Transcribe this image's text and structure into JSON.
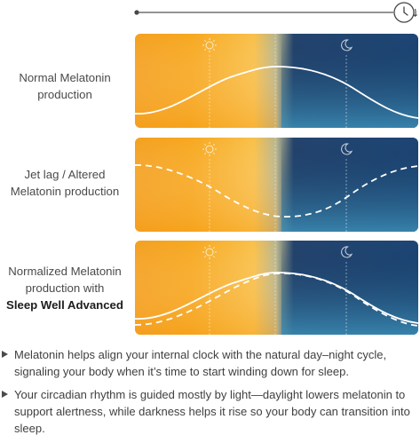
{
  "rows": [
    {
      "label_lines": [
        "Normal Melatonin",
        "production"
      ],
      "curves": [
        "solid"
      ]
    },
    {
      "label_lines": [
        "Jet lag / Altered",
        "Melatonin production"
      ],
      "curves": [
        "dashed"
      ]
    },
    {
      "label_lines": [
        "Normalized Melatonin",
        "production with"
      ],
      "label_bold": "Sleep Well Advanced",
      "curves": [
        "solid",
        "dashed"
      ]
    }
  ],
  "bullets": [
    "Melatonin helps align your internal clock with the natural day–night cycle, signaling your body when it’s time to start winding down for sleep.",
    "Your circadian rhythm is guided mostly by light—daylight lowers melatonin to support alertness, while darkness helps it rise so your body can transition into sleep."
  ],
  "icons": {
    "timeline": "clock-icon",
    "day": "sun-icon",
    "night": "moon-icon",
    "bullet": "triangle-bullet-icon"
  },
  "colors": {
    "day_start": "#f7a21b",
    "day_end": "#f9bb3f",
    "night_start": "#18355f",
    "night_end": "#2f7aa6",
    "curve": "#ffffff"
  }
}
